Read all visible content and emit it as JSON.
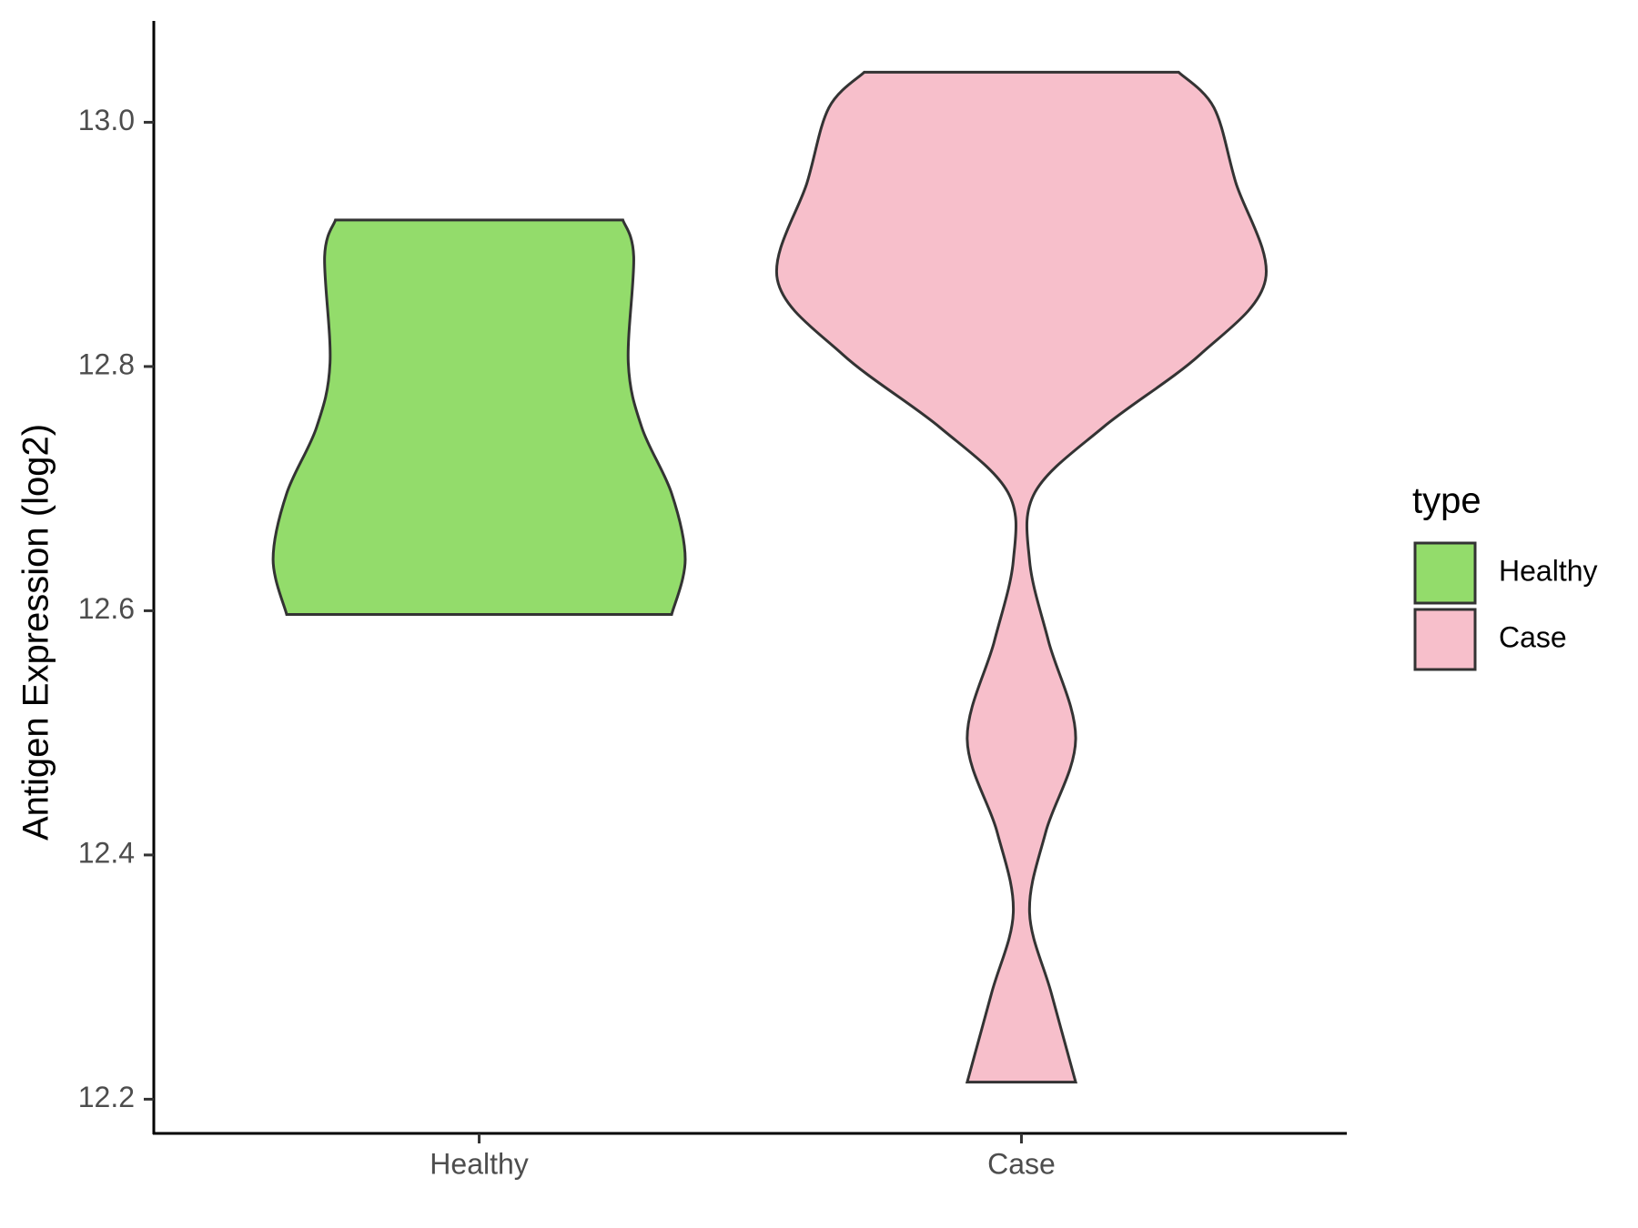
{
  "chart_data": {
    "type": "violin",
    "y_label": "Antigen Expression (log2)",
    "categories": [
      "Healthy",
      "Case"
    ],
    "legend_title": "type",
    "legend_position": "right",
    "ylim": [
      12.172,
      13.083
    ],
    "yticks": [
      {
        "value": 12.2,
        "label": "12.2"
      },
      {
        "value": 12.4,
        "label": "12.4"
      },
      {
        "value": 12.6,
        "label": "12.6"
      },
      {
        "value": 12.8,
        "label": "12.8"
      },
      {
        "value": 13.0,
        "label": "13.0"
      }
    ],
    "series": [
      {
        "name": "Healthy",
        "color": "#93dc6b",
        "y": [
          12.597,
          12.642,
          12.696,
          12.75,
          12.803,
          12.89,
          12.92
        ],
        "widths": [
          0.71,
          0.76,
          0.71,
          0.6,
          0.55,
          0.57,
          0.53
        ]
      },
      {
        "name": "Case",
        "color": "#f7bfcb",
        "y": [
          12.214,
          12.287,
          12.353,
          12.419,
          12.495,
          12.575,
          12.641,
          12.697,
          12.75,
          12.81,
          12.871,
          12.951,
          13.012,
          13.041
        ],
        "widths": [
          0.2,
          0.11,
          0.03,
          0.09,
          0.2,
          0.1,
          0.03,
          0.05,
          0.3,
          0.66,
          0.9,
          0.79,
          0.71,
          0.58
        ]
      }
    ]
  }
}
